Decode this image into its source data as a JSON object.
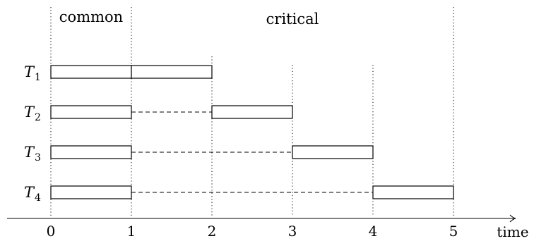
{
  "phases": {
    "common_label": "common",
    "critical_label": "critical"
  },
  "axis": {
    "label": "time",
    "ticks": [
      "0",
      "1",
      "2",
      "3",
      "4",
      "5"
    ]
  },
  "tasks": [
    {
      "name": "T",
      "sub": "1",
      "common": [
        0,
        1
      ],
      "critical": [
        1,
        2
      ]
    },
    {
      "name": "T",
      "sub": "2",
      "common": [
        0,
        1
      ],
      "critical": [
        2,
        3
      ]
    },
    {
      "name": "T",
      "sub": "3",
      "common": [
        0,
        1
      ],
      "critical": [
        3,
        4
      ]
    },
    {
      "name": "T",
      "sub": "4",
      "common": [
        0,
        1
      ],
      "critical": [
        4,
        5
      ]
    }
  ]
}
